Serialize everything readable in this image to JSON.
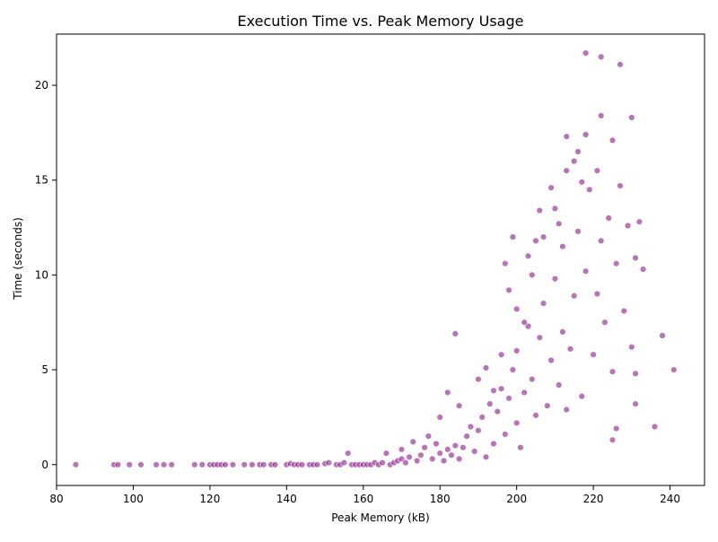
{
  "chart_data": {
    "type": "scatter",
    "title": "Execution Time vs. Peak Memory Usage",
    "xlabel": "Peak Memory (kB)",
    "ylabel": "Time (seconds)",
    "xlim": [
      80,
      249
    ],
    "ylim": [
      -1.1,
      22.7
    ],
    "xticks": [
      80,
      100,
      120,
      140,
      160,
      180,
      200,
      220,
      240
    ],
    "yticks": [
      0,
      5,
      10,
      15,
      20
    ],
    "grid": false,
    "legend": "none",
    "point_color": "#800080",
    "point_alpha": 0.55,
    "series": [
      {
        "values_note": "",
        "points": [
          [
            85,
            0
          ],
          [
            95,
            0
          ],
          [
            96,
            0
          ],
          [
            99,
            0
          ],
          [
            102,
            0
          ],
          [
            106,
            0
          ],
          [
            108,
            0
          ],
          [
            110,
            0
          ],
          [
            116,
            0
          ],
          [
            118,
            0
          ],
          [
            120,
            0
          ],
          [
            121,
            0
          ],
          [
            122,
            0
          ],
          [
            123,
            0
          ],
          [
            124,
            0
          ],
          [
            126,
            0
          ],
          [
            129,
            0
          ],
          [
            131,
            0
          ],
          [
            133,
            0
          ],
          [
            134,
            0
          ],
          [
            136,
            0
          ],
          [
            137,
            0
          ],
          [
            140,
            0
          ],
          [
            141,
            0.05
          ],
          [
            142,
            0
          ],
          [
            143,
            0
          ],
          [
            144,
            0
          ],
          [
            146,
            0
          ],
          [
            147,
            0
          ],
          [
            148,
            0
          ],
          [
            150,
            0.05
          ],
          [
            151,
            0.1
          ],
          [
            153,
            0
          ],
          [
            154,
            0
          ],
          [
            155,
            0.1
          ],
          [
            156,
            0.6
          ],
          [
            157,
            0
          ],
          [
            158,
            0
          ],
          [
            159,
            0
          ],
          [
            160,
            0
          ],
          [
            161,
            0
          ],
          [
            162,
            0
          ],
          [
            163,
            0.1
          ],
          [
            164,
            0
          ],
          [
            165,
            0.1
          ],
          [
            166,
            0.6
          ],
          [
            167,
            0
          ],
          [
            168,
            0.1
          ],
          [
            169,
            0.2
          ],
          [
            170,
            0.3
          ],
          [
            170,
            0.8
          ],
          [
            171,
            0.1
          ],
          [
            172,
            0.4
          ],
          [
            173,
            1.2
          ],
          [
            174,
            0.2
          ],
          [
            175,
            0.5
          ],
          [
            176,
            0.9
          ],
          [
            177,
            1.5
          ],
          [
            178,
            0.3
          ],
          [
            179,
            1.1
          ],
          [
            180,
            0.6
          ],
          [
            181,
            0.2
          ],
          [
            182,
            0.8
          ],
          [
            183,
            0.5
          ],
          [
            184,
            1.0
          ],
          [
            185,
            0.3
          ],
          [
            186,
            0.9
          ],
          [
            187,
            1.5
          ],
          [
            188,
            2.0
          ],
          [
            189,
            0.7
          ],
          [
            190,
            1.8
          ],
          [
            191,
            2.5
          ],
          [
            192,
            0.4
          ],
          [
            193,
            3.2
          ],
          [
            194,
            1.1
          ],
          [
            195,
            2.8
          ],
          [
            196,
            4.0
          ],
          [
            197,
            1.6
          ],
          [
            198,
            3.5
          ],
          [
            199,
            5.0
          ],
          [
            200,
            2.2
          ],
          [
            200,
            6.0
          ],
          [
            201,
            0.9
          ],
          [
            202,
            3.8
          ],
          [
            203,
            7.3
          ],
          [
            204,
            4.5
          ],
          [
            205,
            2.6
          ],
          [
            206,
            6.7
          ],
          [
            207,
            8.5
          ],
          [
            208,
            3.1
          ],
          [
            209,
            5.5
          ],
          [
            210,
            9.8
          ],
          [
            211,
            4.2
          ],
          [
            212,
            7.0
          ],
          [
            212,
            11.5
          ],
          [
            213,
            2.9
          ],
          [
            214,
            6.1
          ],
          [
            215,
            8.9
          ],
          [
            216,
            12.3
          ],
          [
            217,
            3.6
          ],
          [
            218,
            10.2
          ],
          [
            219,
            14.5
          ],
          [
            220,
            5.8
          ],
          [
            221,
            9.0
          ],
          [
            222,
            11.8
          ],
          [
            223,
            7.5
          ],
          [
            224,
            13.0
          ],
          [
            225,
            4.9
          ],
          [
            226,
            10.6
          ],
          [
            227,
            14.7
          ],
          [
            228,
            8.1
          ],
          [
            229,
            12.6
          ],
          [
            230,
            6.2
          ],
          [
            231,
            10.9
          ],
          [
            232,
            12.8
          ],
          [
            233,
            10.3
          ],
          [
            218,
            21.7
          ],
          [
            222,
            21.5
          ],
          [
            227,
            21.1
          ],
          [
            230,
            18.3
          ],
          [
            222,
            18.4
          ],
          [
            218,
            17.4
          ],
          [
            225,
            17.1
          ],
          [
            213,
            17.3
          ],
          [
            216,
            16.5
          ],
          [
            221,
            15.5
          ],
          [
            215,
            16.0
          ],
          [
            213,
            15.5
          ],
          [
            209,
            14.6
          ],
          [
            217,
            14.9
          ],
          [
            231,
            4.8
          ],
          [
            231,
            3.2
          ],
          [
            236,
            2.0
          ],
          [
            238,
            6.8
          ],
          [
            241,
            5.0
          ],
          [
            225,
            1.3
          ],
          [
            226,
            1.9
          ],
          [
            184,
            6.9
          ],
          [
            197,
            10.6
          ],
          [
            199,
            12.0
          ],
          [
            205,
            11.8
          ],
          [
            203,
            11.0
          ],
          [
            196,
            5.8
          ],
          [
            182,
            3.8
          ],
          [
            180,
            2.5
          ],
          [
            185,
            3.1
          ],
          [
            190,
            4.5
          ],
          [
            192,
            5.1
          ],
          [
            194,
            3.9
          ],
          [
            198,
            9.2
          ],
          [
            200,
            8.2
          ],
          [
            202,
            7.5
          ],
          [
            204,
            10.0
          ],
          [
            206,
            13.4
          ],
          [
            207,
            12.0
          ],
          [
            210,
            13.5
          ],
          [
            211,
            12.7
          ]
        ]
      }
    ]
  }
}
